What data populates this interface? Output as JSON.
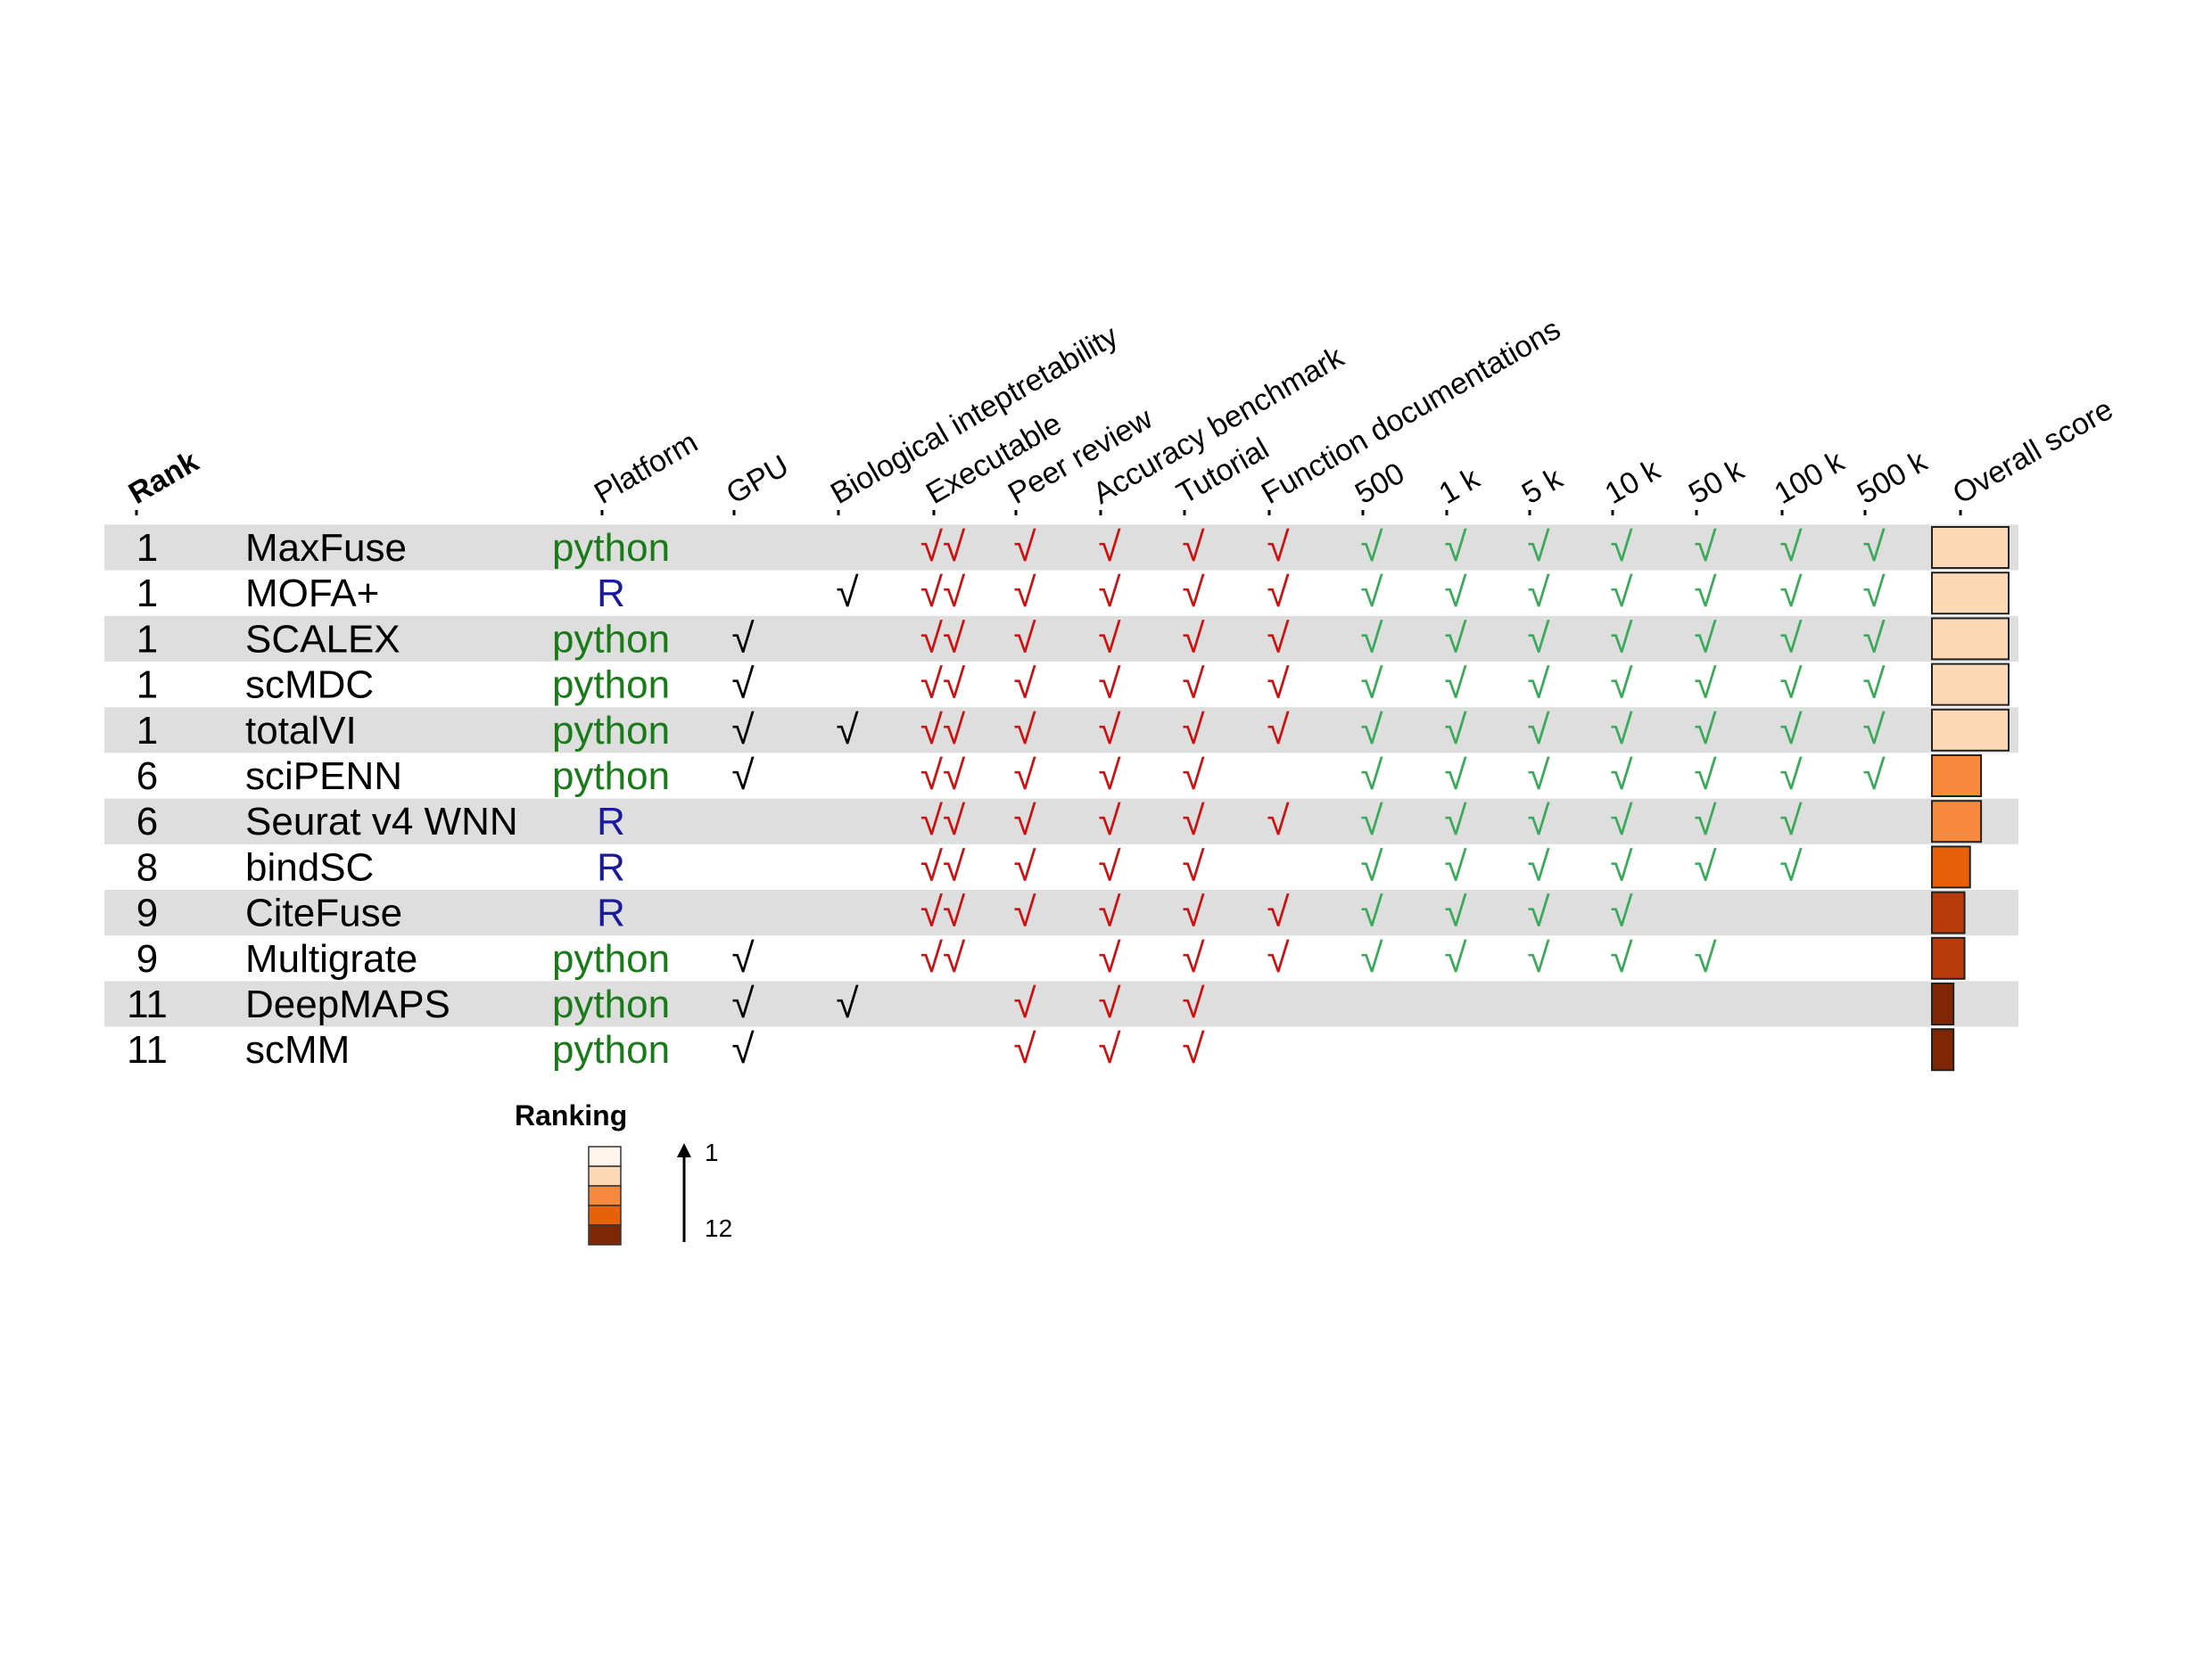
{
  "chart_data": {
    "type": "table",
    "rank_header": "Rank",
    "columns": [
      {
        "key": "platform",
        "label": "Platform"
      },
      {
        "key": "gpu",
        "label": "GPU"
      },
      {
        "key": "bio",
        "label": "Biological inteptretability"
      },
      {
        "key": "exec",
        "label": "Executable"
      },
      {
        "key": "peer",
        "label": "Peer review"
      },
      {
        "key": "acc",
        "label": "Accuracy benchmark"
      },
      {
        "key": "tut",
        "label": "Tutorial"
      },
      {
        "key": "func",
        "label": "Function documentations"
      },
      {
        "key": "s500",
        "label": "500"
      },
      {
        "key": "s1k",
        "label": "1 k"
      },
      {
        "key": "s5k",
        "label": "5 k"
      },
      {
        "key": "s10k",
        "label": "10 k"
      },
      {
        "key": "s50k",
        "label": "50 k"
      },
      {
        "key": "s100k",
        "label": "100 k"
      },
      {
        "key": "s500k",
        "label": "500 k"
      },
      {
        "key": "overall",
        "label": "Overall score"
      }
    ],
    "check_symbol": "√",
    "exec_symbol": "√√",
    "rows": [
      {
        "rank": "1",
        "method": "MaxFuse",
        "platform": "python",
        "gpu": false,
        "bio": false,
        "exec": true,
        "peer": true,
        "acc": true,
        "tut": true,
        "func": true,
        "scal": [
          true,
          true,
          true,
          true,
          true,
          true,
          true
        ],
        "ranking": 1
      },
      {
        "rank": "1",
        "method": "MOFA+",
        "platform": "R",
        "gpu": false,
        "bio": true,
        "exec": true,
        "peer": true,
        "acc": true,
        "tut": true,
        "func": true,
        "scal": [
          true,
          true,
          true,
          true,
          true,
          true,
          true
        ],
        "ranking": 1
      },
      {
        "rank": "1",
        "method": "SCALEX",
        "platform": "python",
        "gpu": true,
        "bio": false,
        "exec": true,
        "peer": true,
        "acc": true,
        "tut": true,
        "func": true,
        "scal": [
          true,
          true,
          true,
          true,
          true,
          true,
          true
        ],
        "ranking": 1
      },
      {
        "rank": "1",
        "method": "scMDC",
        "platform": "python",
        "gpu": true,
        "bio": false,
        "exec": true,
        "peer": true,
        "acc": true,
        "tut": true,
        "func": true,
        "scal": [
          true,
          true,
          true,
          true,
          true,
          true,
          true
        ],
        "ranking": 1
      },
      {
        "rank": "1",
        "method": "totalVI",
        "platform": "python",
        "gpu": true,
        "bio": true,
        "exec": true,
        "peer": true,
        "acc": true,
        "tut": true,
        "func": true,
        "scal": [
          true,
          true,
          true,
          true,
          true,
          true,
          true
        ],
        "ranking": 1
      },
      {
        "rank": "6",
        "method": "sciPENN",
        "platform": "python",
        "gpu": true,
        "bio": false,
        "exec": true,
        "peer": true,
        "acc": true,
        "tut": true,
        "func": false,
        "scal": [
          true,
          true,
          true,
          true,
          true,
          true,
          true
        ],
        "ranking": 6
      },
      {
        "rank": "6",
        "method": "Seurat v4 WNN",
        "platform": "R",
        "gpu": false,
        "bio": false,
        "exec": true,
        "peer": true,
        "acc": true,
        "tut": true,
        "func": true,
        "scal": [
          true,
          true,
          true,
          true,
          true,
          true,
          false
        ],
        "ranking": 6
      },
      {
        "rank": "8",
        "method": "bindSC",
        "platform": "R",
        "gpu": false,
        "bio": false,
        "exec": true,
        "peer": true,
        "acc": true,
        "tut": true,
        "func": false,
        "scal": [
          true,
          true,
          true,
          true,
          true,
          true,
          false
        ],
        "ranking": 8
      },
      {
        "rank": "9",
        "method": "CiteFuse",
        "platform": "R",
        "gpu": false,
        "bio": false,
        "exec": true,
        "peer": true,
        "acc": true,
        "tut": true,
        "func": true,
        "scal": [
          true,
          true,
          true,
          true,
          false,
          false,
          false
        ],
        "ranking": 9
      },
      {
        "rank": "9",
        "method": "Multigrate",
        "platform": "python",
        "gpu": true,
        "bio": false,
        "exec": true,
        "peer": false,
        "acc": true,
        "tut": true,
        "func": true,
        "scal": [
          true,
          true,
          true,
          true,
          true,
          false,
          false
        ],
        "ranking": 9
      },
      {
        "rank": "11",
        "method": "DeepMAPS",
        "platform": "python",
        "gpu": true,
        "bio": true,
        "exec": false,
        "peer": true,
        "acc": true,
        "tut": true,
        "func": false,
        "scal": [
          false,
          false,
          false,
          false,
          false,
          false,
          false
        ],
        "ranking": 11
      },
      {
        "rank": "11",
        "method": "scMM",
        "platform": "python",
        "gpu": true,
        "bio": false,
        "exec": false,
        "peer": true,
        "acc": true,
        "tut": true,
        "func": false,
        "scal": [
          false,
          false,
          false,
          false,
          false,
          false,
          false
        ],
        "ranking": 11
      }
    ],
    "legend": {
      "title": "Ranking",
      "top_label": "1",
      "bottom_label": "12"
    }
  },
  "colors": {
    "row_stripe": "#dedede",
    "python": "#1a7a1a",
    "R": "#1a1a9a",
    "black_check": "#000000",
    "red_check": "#cc1111",
    "green_check": "#3aaa5a",
    "bar_outline": "#222222",
    "ranking_ramp": [
      "#fff5eb",
      "#fdd8b4",
      "#f78a3d",
      "#e8600a",
      "#b83c0b",
      "#7f2704"
    ]
  }
}
